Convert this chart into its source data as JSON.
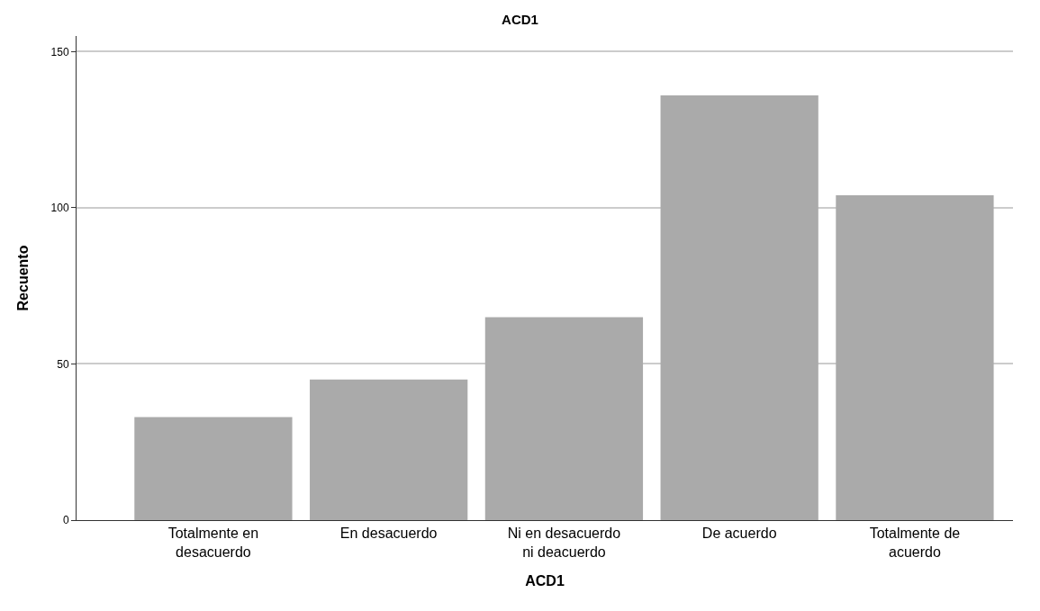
{
  "chart_data": {
    "type": "bar",
    "title": "ACD1",
    "xlabel": "ACD1",
    "ylabel": "Recuento",
    "categories": [
      "Totalmente en desacuerdo",
      "En desacuerdo",
      "Ni en desacuerdo ni deacuerdo",
      "De acuerdo",
      "Totalmente de acuerdo"
    ],
    "values": [
      33,
      45,
      65,
      136,
      104
    ],
    "color": "#aaaaaa",
    "ylim": [
      0,
      155
    ],
    "yticks": [
      0,
      50,
      100,
      150
    ],
    "grid": "y"
  }
}
